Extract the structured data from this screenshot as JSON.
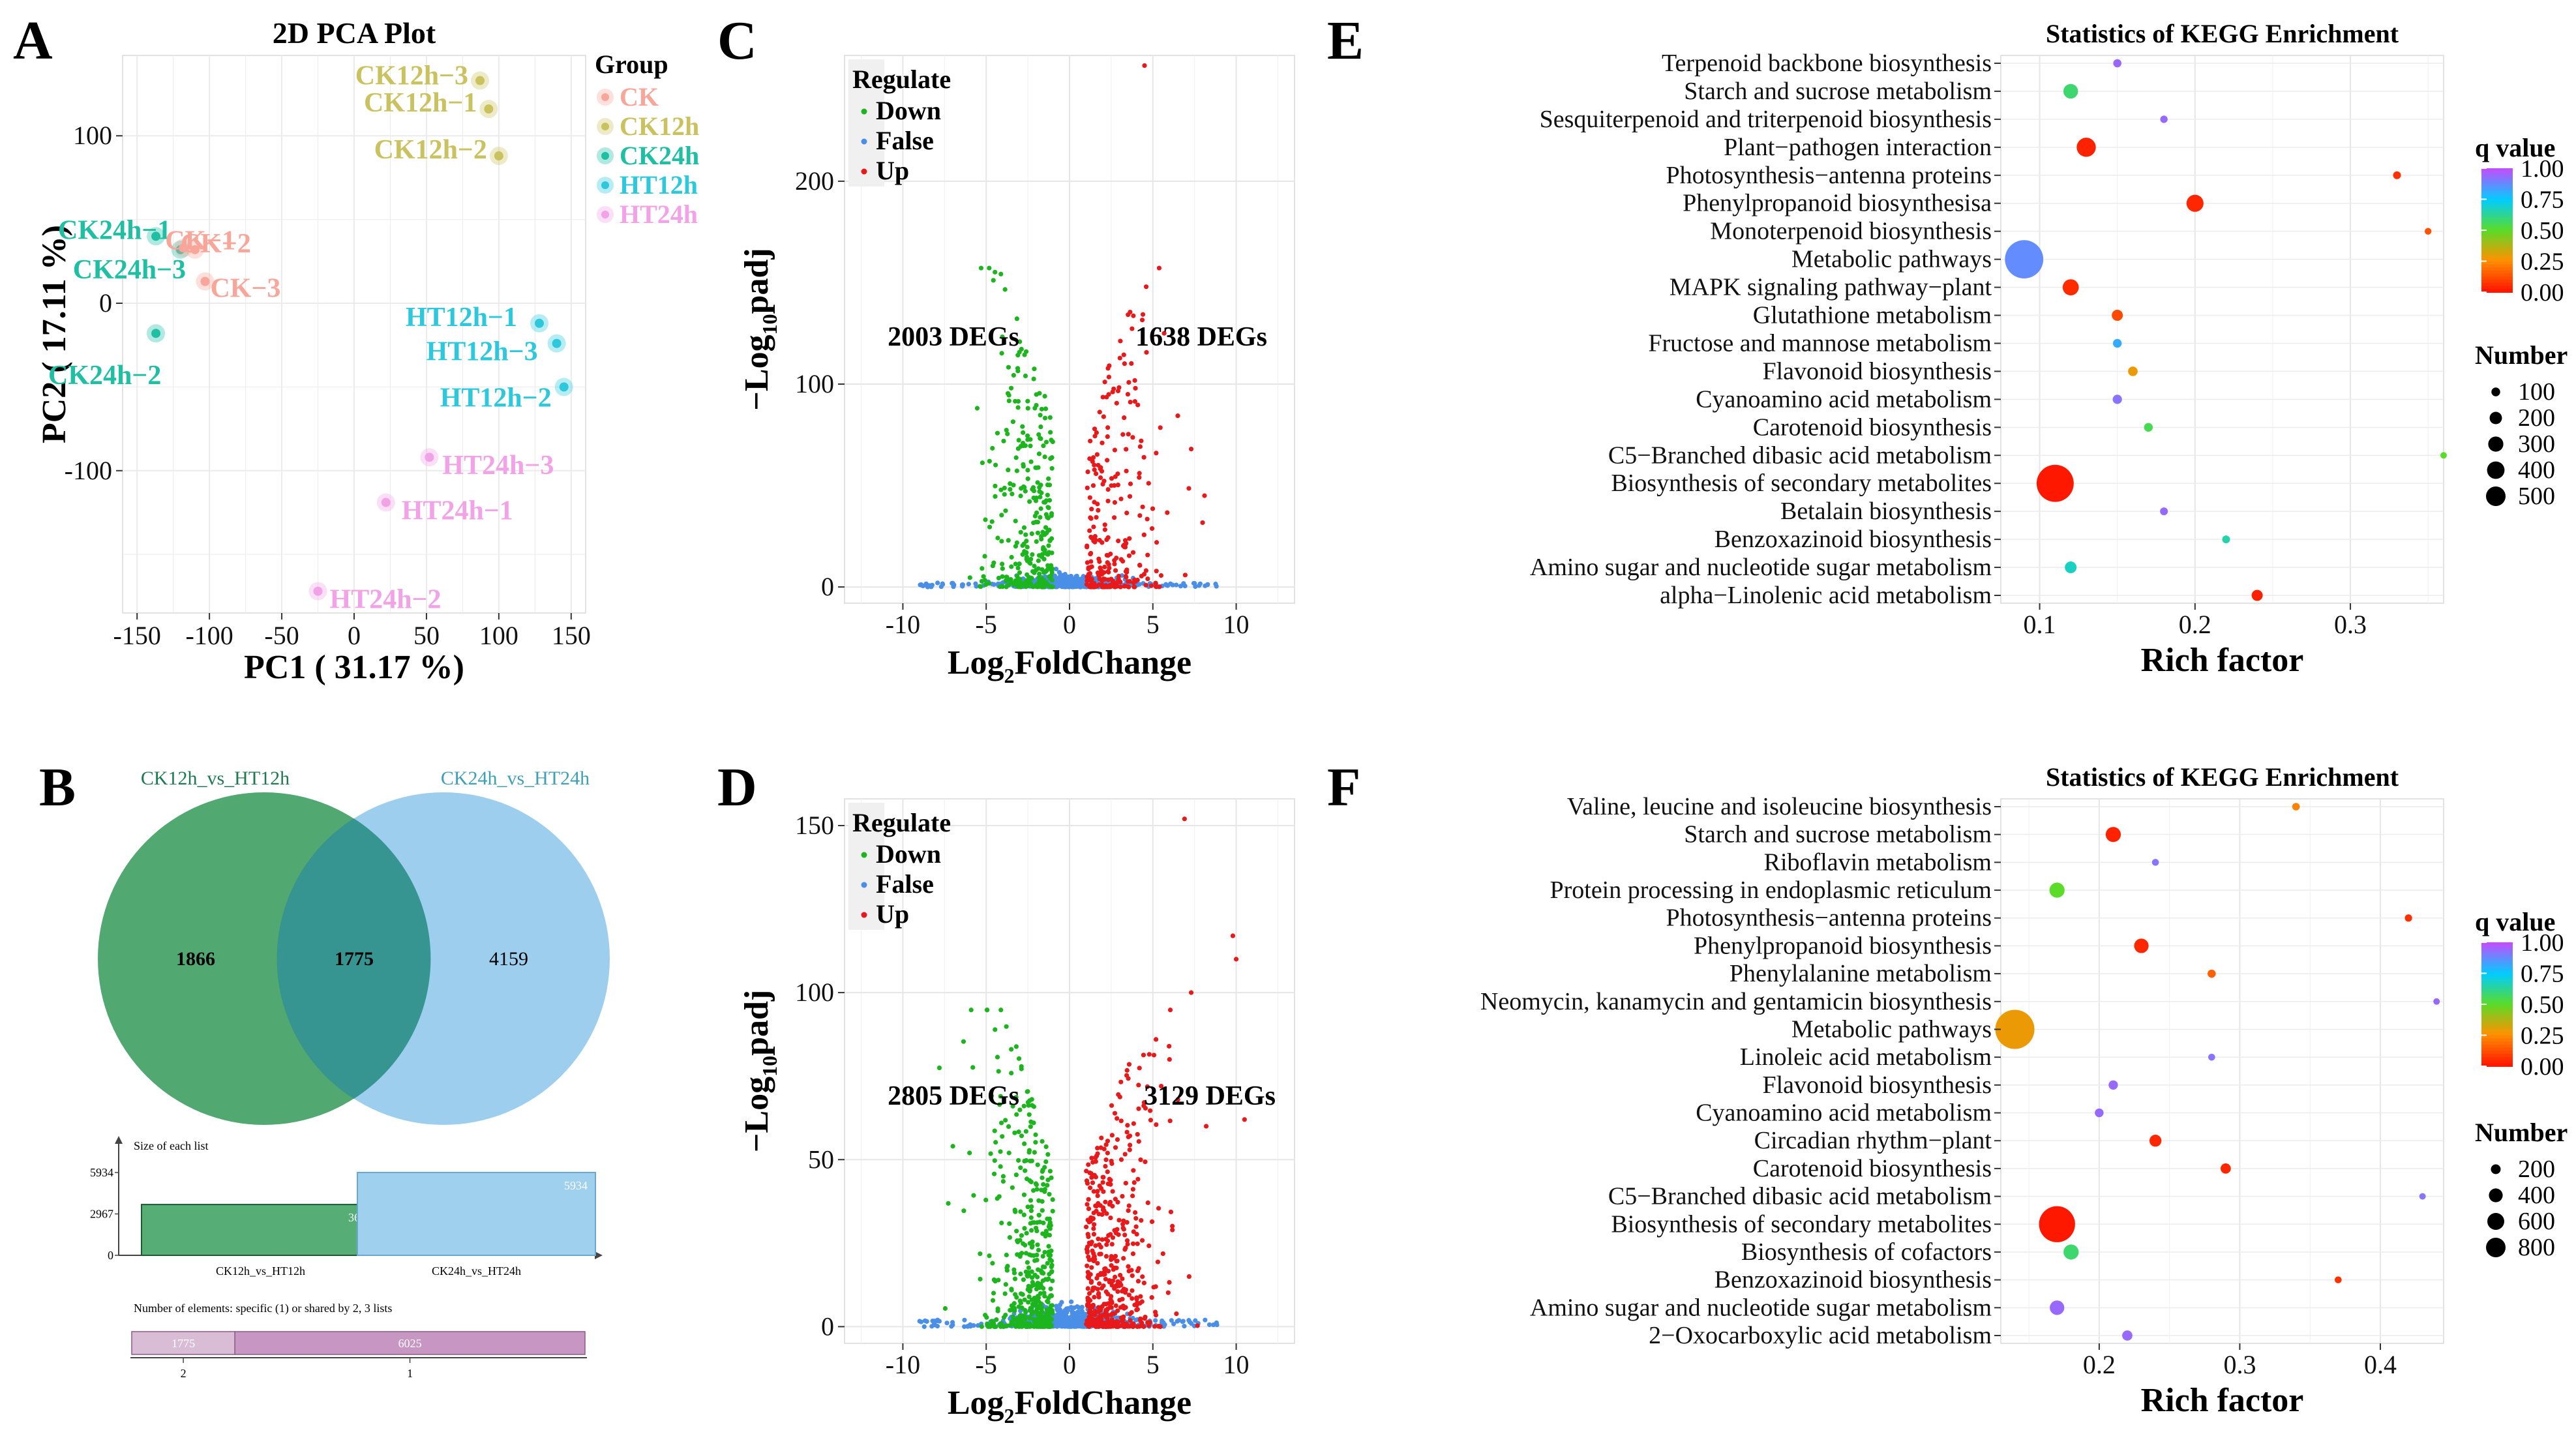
{
  "panels": {
    "A": "A",
    "B": "B",
    "C": "C",
    "D": "D",
    "E": "E",
    "F": "F"
  },
  "chart_data": [
    {
      "id": "A",
      "type": "scatter",
      "title": "2D PCA Plot",
      "xlabel": "PC1 ( 31.17 %)",
      "ylabel": "PC2 ( 17.11 %)",
      "xlim": [
        -160,
        160
      ],
      "ylim": [
        -185,
        148
      ],
      "xticks": [
        -150,
        -100,
        -50,
        0,
        50,
        100,
        150
      ],
      "yticks": [
        -100,
        0,
        100
      ],
      "legend_title": "Group",
      "groups": [
        {
          "name": "CK",
          "color": "#F8A59A"
        },
        {
          "name": "CK12h",
          "color": "#C9C25E"
        },
        {
          "name": "CK24h",
          "color": "#1EBFA3"
        },
        {
          "name": "HT12h",
          "color": "#2DC8DC"
        },
        {
          "name": "HT24h",
          "color": "#F2A2E6"
        }
      ],
      "points": [
        {
          "label": "CK12h−3",
          "group": "CK12h",
          "x": 87,
          "y": 133
        },
        {
          "label": "CK12h−1",
          "group": "CK12h",
          "x": 93,
          "y": 116
        },
        {
          "label": "CK12h−2",
          "group": "CK12h",
          "x": 100,
          "y": 88
        },
        {
          "label": "CK24h−1",
          "group": "CK24h",
          "x": -137,
          "y": 40
        },
        {
          "label": "CK24h−3",
          "group": "CK24h",
          "x": -120,
          "y": 32
        },
        {
          "label": "CK24h−2",
          "group": "CK24h",
          "x": -137,
          "y": -18
        },
        {
          "label": "CK−1",
          "group": "CK",
          "x": -118,
          "y": 33
        },
        {
          "label": "CK−2",
          "group": "CK",
          "x": -110,
          "y": 32
        },
        {
          "label": "CK−3",
          "group": "CK",
          "x": -103,
          "y": 13
        },
        {
          "label": "HT12h−1",
          "group": "HT12h",
          "x": 128,
          "y": -12
        },
        {
          "label": "HT12h−3",
          "group": "HT12h",
          "x": 140,
          "y": -24
        },
        {
          "label": "HT12h−2",
          "group": "HT12h",
          "x": 145,
          "y": -50
        },
        {
          "label": "HT24h−3",
          "group": "HT24h",
          "x": 52,
          "y": -92
        },
        {
          "label": "HT24h−1",
          "group": "HT24h",
          "x": 22,
          "y": -119
        },
        {
          "label": "HT24h−2",
          "group": "HT24h",
          "x": -25,
          "y": -172
        }
      ]
    },
    {
      "id": "B",
      "type": "venn",
      "sets": [
        {
          "name": "CK12h_vs_HT12h",
          "color": "#1E7A52"
        },
        {
          "name": "CK24h_vs_HT24h",
          "color": "#3E9FB5"
        }
      ],
      "regions": {
        "left_only": "1866",
        "overlap": "1775",
        "right_only": "4159"
      },
      "bar_title": "Size of each list",
      "bars": [
        {
          "label": "CK12h_vs_HT12h",
          "value": 3641
        },
        {
          "label": "CK24h_vs_HT24h",
          "value": 5934
        }
      ],
      "bar_yticks": [
        "5934",
        "2967",
        "0"
      ],
      "bar_ymax": 5934,
      "shared_title": "Number of elements: specific (1) or shared by 2, 3 lists",
      "shared": [
        {
          "label": "2",
          "value": 1775
        },
        {
          "label": "1",
          "value": 6025
        }
      ],
      "shared_value_labels": [
        "1775",
        "6025"
      ]
    },
    {
      "id": "C",
      "type": "scatter",
      "subtype": "volcano",
      "xlabel": "Log2FoldChange",
      "ylabel": "−Log10padj",
      "xlim": [
        -13.5,
        13.5
      ],
      "ylim": [
        -8,
        262
      ],
      "xticks": [
        -10,
        -5,
        0,
        5,
        10
      ],
      "yticks": [
        0,
        100,
        200
      ],
      "legend_title": "Regulate",
      "legend": [
        {
          "name": "Down",
          "color": "#1DB51D"
        },
        {
          "name": "False",
          "color": "#4A8FE7"
        },
        {
          "name": "Up",
          "color": "#E8191B"
        }
      ],
      "annotations": [
        "2003 DEGs",
        "1638 DEGs"
      ],
      "down_count": 2003,
      "up_count": 1638,
      "highlight_up": [
        [
          4.5,
          257
        ],
        [
          4.6,
          148
        ],
        [
          3.5,
          95
        ],
        [
          4.3,
          72
        ],
        [
          5.2,
          66
        ],
        [
          7.3,
          68
        ],
        [
          8.1,
          45
        ]
      ],
      "highlight_down": [
        [
          -2.6,
          116
        ],
        [
          -3.5,
          98
        ],
        [
          -4.8,
          62
        ]
      ]
    },
    {
      "id": "D",
      "type": "scatter",
      "subtype": "volcano",
      "xlabel": "Log2FoldChange",
      "ylabel": "−Log10padj",
      "xlim": [
        -13.5,
        13.5
      ],
      "ylim": [
        -5,
        158
      ],
      "xticks": [
        -10,
        -5,
        0,
        5,
        10
      ],
      "yticks": [
        0,
        50,
        100,
        150
      ],
      "legend_title": "Regulate",
      "legend": [
        {
          "name": "Down",
          "color": "#1DB51D"
        },
        {
          "name": "False",
          "color": "#4A8FE7"
        },
        {
          "name": "Up",
          "color": "#E8191B"
        }
      ],
      "annotations": [
        "2805 DEGs",
        "3129 DEGs"
      ],
      "down_count": 2805,
      "up_count": 3129,
      "highlight_up": [
        [
          6.9,
          152
        ],
        [
          9.8,
          117
        ],
        [
          10,
          110
        ],
        [
          7.3,
          100
        ],
        [
          6.0,
          80
        ],
        [
          5.5,
          72
        ],
        [
          6.5,
          68
        ],
        [
          10.5,
          62
        ],
        [
          8.2,
          60
        ]
      ],
      "highlight_down": [
        [
          -7,
          54
        ],
        [
          -6,
          52
        ],
        [
          -3.4,
          66
        ]
      ]
    },
    {
      "id": "E",
      "type": "scatter",
      "subtype": "bubble",
      "title": "Statistics of KEGG Enrichment",
      "xlabel": "Rich factor",
      "xlim": [
        0.075,
        0.36
      ],
      "xticks": [
        0.1,
        0.2,
        0.3
      ],
      "colorbar_title": "q value",
      "colorbar_ticks": [
        "1.00",
        "0.75",
        "0.50",
        "0.25",
        "0.00"
      ],
      "size_title": "Number",
      "size_legend": [
        100,
        200,
        300,
        400,
        500
      ],
      "size_max": 500,
      "terms": [
        {
          "name": "Terpenoid backbone biosynthesis",
          "rich": 0.15,
          "q": 0.95,
          "n": 22
        },
        {
          "name": "Starch and sucrose metabolism",
          "rich": 0.12,
          "q": 0.58,
          "n": 70
        },
        {
          "name": "Sesquiterpenoid and triterpenoid biosynthesis",
          "rich": 0.18,
          "q": 0.95,
          "n": 18
        },
        {
          "name": "Plant−pathogen interaction",
          "rich": 0.13,
          "q": 0.02,
          "n": 120
        },
        {
          "name": "Photosynthesis−antenna proteins",
          "rich": 0.33,
          "q": 0.05,
          "n": 20
        },
        {
          "name": "Phenylpropanoid biosynthesisa",
          "rich": 0.2,
          "q": 0.03,
          "n": 95
        },
        {
          "name": "Monoterpenoid biosynthesis",
          "rich": 0.35,
          "q": 0.12,
          "n": 15
        },
        {
          "name": "Metabolic pathways",
          "rich": 0.09,
          "q": 0.88,
          "n": 480
        },
        {
          "name": "MAPK signaling pathway−plant",
          "rich": 0.12,
          "q": 0.04,
          "n": 85
        },
        {
          "name": "Glutathione metabolism",
          "rich": 0.15,
          "q": 0.1,
          "n": 40
        },
        {
          "name": "Fructose and mannose metabolism",
          "rich": 0.15,
          "q": 0.82,
          "n": 25
        },
        {
          "name": "Flavonoid biosynthesis",
          "rich": 0.16,
          "q": 0.28,
          "n": 30
        },
        {
          "name": "Cyanoamino acid metabolism",
          "rich": 0.15,
          "q": 0.93,
          "n": 28
        },
        {
          "name": "Carotenoid biosynthesis",
          "rich": 0.17,
          "q": 0.55,
          "n": 25
        },
        {
          "name": "C5−Branched dibasic acid metabolism",
          "rich": 0.36,
          "q": 0.5,
          "n": 10
        },
        {
          "name": "Biosynthesis of secondary metabolites",
          "rich": 0.11,
          "q": 0.0,
          "n": 450
        },
        {
          "name": "Betalain biosynthesis",
          "rich": 0.18,
          "q": 0.95,
          "n": 20
        },
        {
          "name": "Benzoxazinoid biosynthesis",
          "rich": 0.22,
          "q": 0.65,
          "n": 20
        },
        {
          "name": "Amino sugar and nucleotide sugar metabolism",
          "rich": 0.12,
          "q": 0.68,
          "n": 45
        },
        {
          "name": "alpha−Linolenic acid metabolism",
          "rich": 0.24,
          "q": 0.02,
          "n": 40
        }
      ]
    },
    {
      "id": "F",
      "type": "scatter",
      "subtype": "bubble",
      "title": "Statistics of KEGG Enrichment",
      "xlabel": "Rich factor",
      "xlim": [
        0.13,
        0.445
      ],
      "xticks": [
        0.2,
        0.3,
        0.4
      ],
      "colorbar_title": "q value",
      "colorbar_ticks": [
        "1.00",
        "0.75",
        "0.50",
        "0.25",
        "0.00"
      ],
      "size_title": "Number",
      "size_legend": [
        200,
        400,
        600,
        800
      ],
      "size_max": 800,
      "terms": [
        {
          "name": "Valine, leucine and isoleucine biosynthesis",
          "rich": 0.34,
          "q": 0.22,
          "n": 30
        },
        {
          "name": "Starch and sucrose metabolism",
          "rich": 0.21,
          "q": 0.02,
          "n": 120
        },
        {
          "name": "Riboflavin metabolism",
          "rich": 0.24,
          "q": 0.93,
          "n": 25
        },
        {
          "name": "Protein processing in endoplasmic reticulum",
          "rich": 0.17,
          "q": 0.5,
          "n": 120
        },
        {
          "name": "Photosynthesis−antenna proteins",
          "rich": 0.42,
          "q": 0.05,
          "n": 28
        },
        {
          "name": "Phenylpropanoid biosynthesis",
          "rich": 0.23,
          "q": 0.03,
          "n": 110
        },
        {
          "name": "Phenylalanine metabolism",
          "rich": 0.28,
          "q": 0.15,
          "n": 35
        },
        {
          "name": "Neomycin, kanamycin and gentamicin biosynthesis",
          "rich": 0.44,
          "q": 0.95,
          "n": 10
        },
        {
          "name": "Metabolic pathways",
          "rich": 0.14,
          "q": 0.28,
          "n": 800
        },
        {
          "name": "Linoleic acid metabolism",
          "rich": 0.28,
          "q": 0.93,
          "n": 25
        },
        {
          "name": "Flavonoid biosynthesis",
          "rich": 0.21,
          "q": 0.95,
          "n": 45
        },
        {
          "name": "Cyanoamino acid metabolism",
          "rich": 0.2,
          "q": 0.95,
          "n": 40
        },
        {
          "name": "Circadian rhythm−plant",
          "rich": 0.24,
          "q": 0.03,
          "n": 75
        },
        {
          "name": "Carotenoid biosynthesis",
          "rich": 0.29,
          "q": 0.03,
          "n": 55
        },
        {
          "name": "C5−Branched dibasic acid metabolism",
          "rich": 0.43,
          "q": 0.93,
          "n": 10
        },
        {
          "name": "Biosynthesis of secondary metabolites",
          "rich": 0.17,
          "q": 0.0,
          "n": 680
        },
        {
          "name": "Biosynthesis of cofactors",
          "rich": 0.18,
          "q": 0.58,
          "n": 120
        },
        {
          "name": "Benzoxazinoid biosynthesis",
          "rich": 0.37,
          "q": 0.05,
          "n": 25
        },
        {
          "name": "Amino sugar and nucleotide sugar metabolism",
          "rich": 0.17,
          "q": 0.95,
          "n": 110
        },
        {
          "name": "2−Oxocarboxylic acid metabolism",
          "rich": 0.22,
          "q": 0.95,
          "n": 55
        }
      ]
    }
  ]
}
